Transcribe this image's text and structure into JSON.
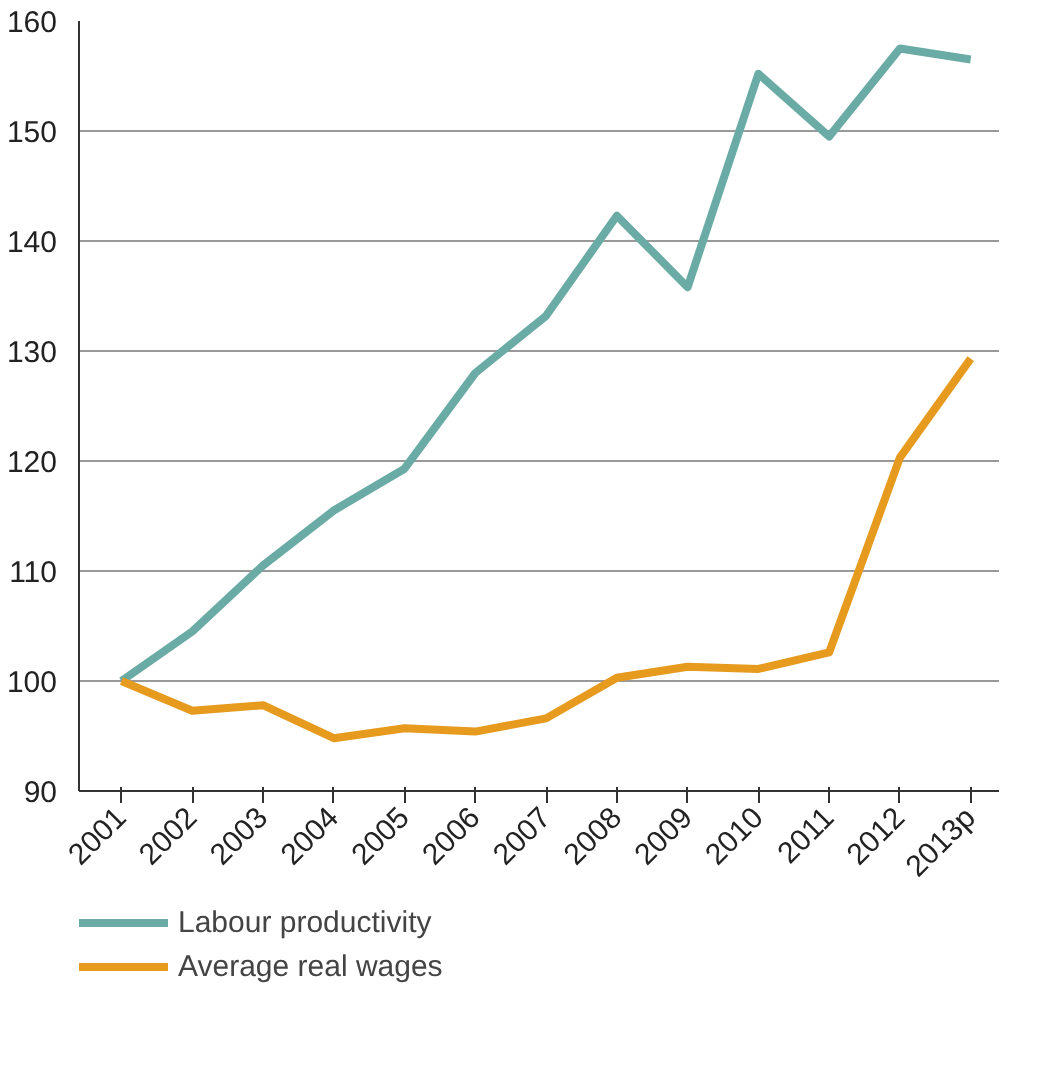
{
  "chart_data": {
    "type": "line",
    "categories": [
      "2001",
      "2002",
      "2003",
      "2004",
      "2005",
      "2006",
      "2007",
      "2008",
      "2009",
      "2010",
      "2011",
      "2012",
      "2013p"
    ],
    "series": [
      {
        "name": "Labour productivity",
        "color": "#6aaba5",
        "values": [
          100,
          104.5,
          110.5,
          115.5,
          119.3,
          128,
          133.2,
          142.3,
          135.8,
          155.2,
          149.5,
          157.5,
          156.5
        ]
      },
      {
        "name": "Average real wages",
        "color": "#e69a1e",
        "values": [
          100,
          97.3,
          97.8,
          94.8,
          95.7,
          95.4,
          96.6,
          100.3,
          101.3,
          101.1,
          102.6,
          120.3,
          129.3
        ]
      }
    ],
    "ylim": [
      90,
      160
    ],
    "yticks": [
      90,
      100,
      110,
      120,
      130,
      140,
      150,
      160
    ],
    "grid": "y",
    "legend": "bottom",
    "marker": "none",
    "line_style": "solid"
  }
}
